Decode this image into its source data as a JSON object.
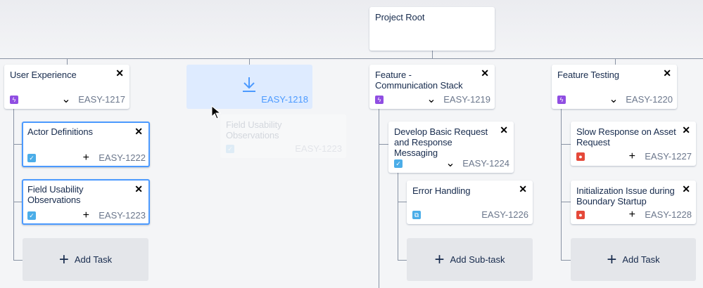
{
  "root": {
    "title": "Project Root"
  },
  "columns": [
    {
      "title": "User Experience",
      "key": "EASY-1217",
      "icon": "epic-icon",
      "children": [
        {
          "title": "Actor Definitions",
          "key": "EASY-1222",
          "icon": "task-icon"
        },
        {
          "title": "Field Usability Observations",
          "key": "EASY-1223",
          "icon": "task-icon"
        }
      ],
      "add_label": "Add Task"
    },
    {
      "drop_key": "EASY-1218",
      "ghost": {
        "title": "Field Usability Observations",
        "key": "EASY-1223"
      }
    },
    {
      "title": "Feature - Communication Stack",
      "key": "EASY-1219",
      "icon": "epic-icon",
      "children": [
        {
          "title": "Develop Basic Request and Response Messaging",
          "key": "EASY-1224",
          "icon": "task-icon",
          "children": [
            {
              "title": "Error Handling",
              "key": "EASY-1226",
              "icon": "subtask-icon"
            }
          ],
          "add_label": "Add Sub-task"
        }
      ]
    },
    {
      "title": "Feature Testing",
      "key": "EASY-1220",
      "icon": "epic-icon",
      "children": [
        {
          "title": "Slow Response on Asset Request",
          "key": "EASY-1227",
          "icon": "bug-icon"
        },
        {
          "title": "Initialization Issue during Boundary Startup",
          "key": "EASY-1228",
          "icon": "bug-icon"
        }
      ],
      "add_label": "Add Task"
    }
  ],
  "colors": {
    "epic": "#904ee2",
    "task": "#4bade8",
    "bug": "#e5493a",
    "selected": "#4c9aff",
    "drop": "#deebff"
  }
}
